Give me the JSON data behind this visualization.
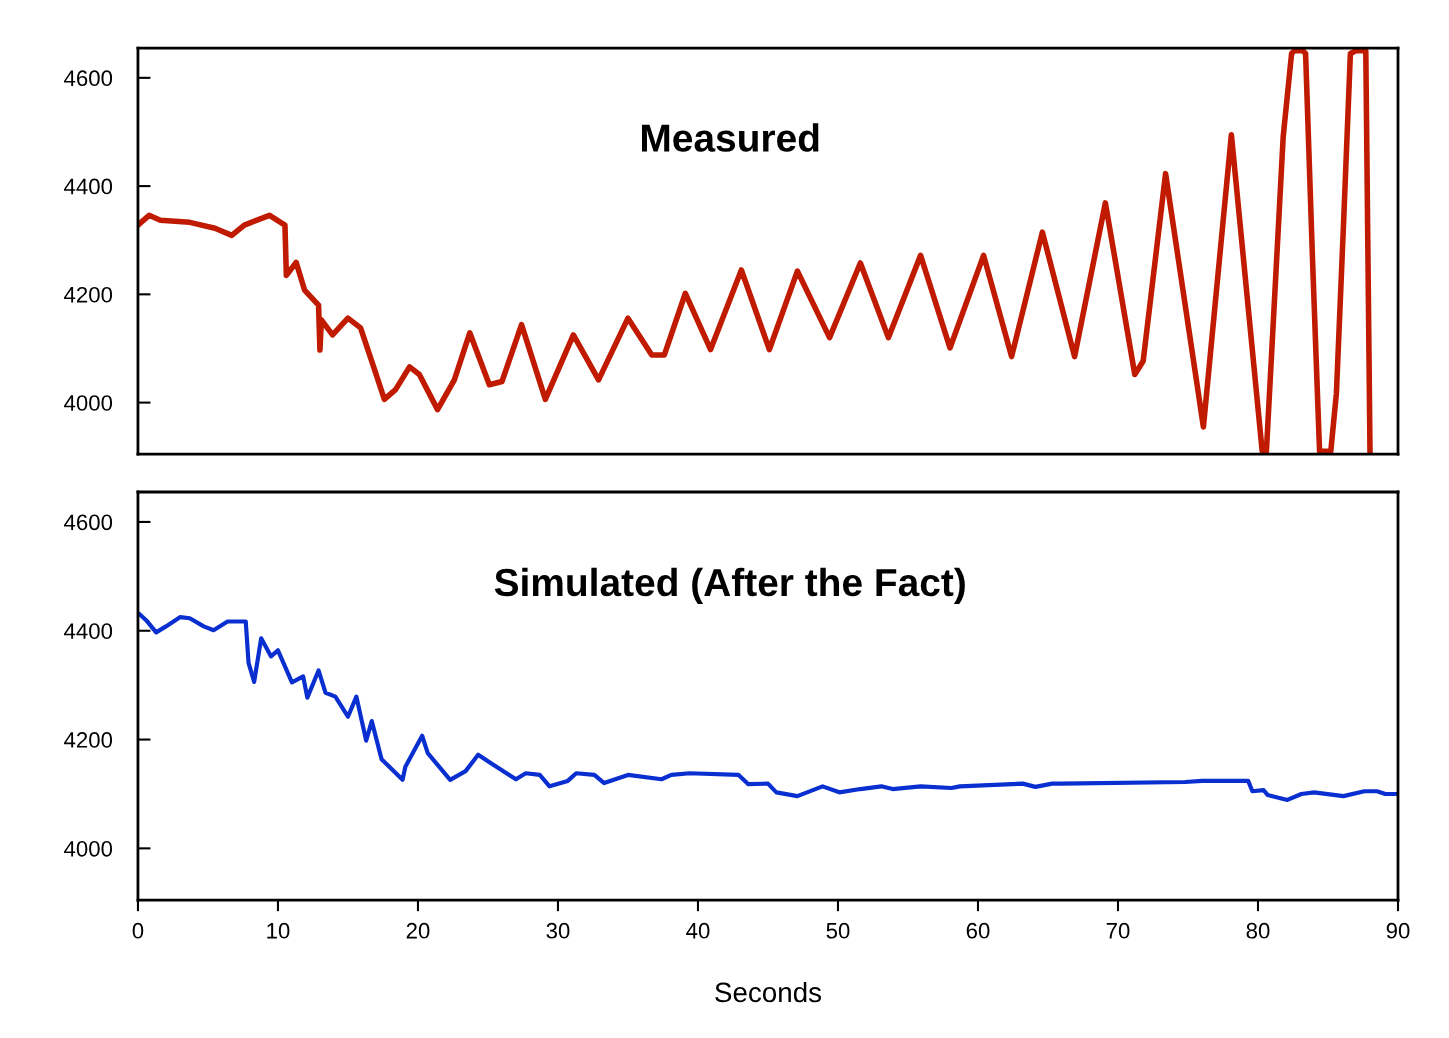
{
  "chart_data": [
    {
      "type": "line",
      "title": "Measured",
      "xlim": [
        0,
        90
      ],
      "ylim": [
        3905,
        4655
      ],
      "yticks": [
        4000,
        4200,
        4400,
        4600
      ],
      "tick_labels": "y",
      "grid": false,
      "legend": false,
      "marker": "none",
      "line_style": "solid",
      "series": [
        {
          "color": "#c01a00",
          "x": [
            0,
            0.8,
            1.6,
            3.7,
            5.5,
            6.7,
            7.6,
            9.4,
            10.5,
            10.6,
            11.3,
            11.9,
            12.9,
            13.0,
            13.1,
            13.9,
            15.0,
            15.9,
            16.9,
            17.6,
            18.4,
            19.4,
            20.1,
            21.4,
            22.6,
            23.7,
            25.1,
            26.0,
            27.4,
            29.1,
            31.1,
            32.9,
            35.0,
            36.7,
            37.6,
            39.1,
            40.9,
            43.1,
            45.1,
            47.1,
            49.4,
            51.6,
            53.6,
            55.9,
            58.0,
            60.4,
            62.4,
            64.6,
            66.9,
            69.1,
            71.2,
            71.8,
            73.4,
            76.1,
            78.1,
            80.3,
            80.6,
            81.8,
            82.4,
            82.6,
            83.2,
            83.4,
            83.9,
            84.3,
            84.4,
            85.2,
            85.6,
            86.1,
            86.6,
            87.0,
            87.7,
            88.0
          ],
          "values": [
            4328,
            4346,
            4337,
            4333,
            4322,
            4309,
            4328,
            4346,
            4328,
            4235,
            4259,
            4208,
            4180,
            4097,
            4153,
            4125,
            4156,
            4138,
            4061,
            4006,
            4024,
            4066,
            4052,
            3987,
            4042,
            4129,
            4033,
            4039,
            4144,
            4006,
            4125,
            4042,
            4156,
            4088,
            4088,
            4202,
            4098,
            4245,
            4098,
            4243,
            4120,
            4258,
            4120,
            4272,
            4101,
            4272,
            4085,
            4315,
            4085,
            4369,
            4052,
            4077,
            4423,
            3955,
            4495,
            3910,
            3910,
            4491,
            4645,
            4650,
            4650,
            4645,
            4261,
            3978,
            3910,
            3910,
            4017,
            4324,
            4645,
            4650,
            4650,
            3910
          ]
        }
      ]
    },
    {
      "type": "line",
      "title": "Simulated (After the Fact)",
      "xlabel": "Seconds",
      "xlim": [
        0,
        90
      ],
      "xticks": [
        0,
        10,
        20,
        30,
        40,
        50,
        60,
        70,
        80,
        90
      ],
      "ylim": [
        3905,
        4655
      ],
      "yticks": [
        4000,
        4200,
        4400,
        4600
      ],
      "grid": false,
      "legend": false,
      "marker": "none",
      "line_style": "solid",
      "series": [
        {
          "color": "#0a2fd0",
          "x": [
            0.14,
            0.6,
            1.3,
            2.0,
            3.0,
            3.7,
            4.7,
            5.4,
            6.4,
            7.7,
            7.9,
            8.3,
            8.8,
            9.5,
            10.0,
            11.0,
            11.8,
            12.1,
            12.9,
            13.4,
            14.1,
            15.0,
            15.6,
            16.3,
            16.7,
            17.4,
            18.9,
            19.1,
            20.3,
            20.7,
            22.3,
            23.4,
            24.3,
            25.3,
            27.0,
            27.7,
            28.7,
            29.4,
            30.7,
            31.3,
            32.6,
            33.3,
            35.0,
            37.4,
            38.1,
            39.4,
            42.9,
            43.6,
            45.0,
            45.6,
            47.1,
            48.9,
            50.1,
            51.6,
            53.1,
            53.9,
            55.9,
            58.1,
            58.7,
            63.2,
            64.1,
            65.3,
            65.9,
            74.8,
            76.0,
            79.3,
            79.6,
            80.4,
            80.7,
            82.1,
            83.1,
            84.0,
            86.1,
            87.6,
            88.5,
            89.1,
            90.0
          ],
          "values": [
            4430,
            4419,
            4397,
            4408,
            4425,
            4423,
            4408,
            4401,
            4417,
            4417,
            4341,
            4306,
            4386,
            4353,
            4364,
            4305,
            4316,
            4277,
            4327,
            4286,
            4279,
            4242,
            4279,
            4198,
            4234,
            4164,
            4126,
            4150,
            4207,
            4175,
            4126,
            4142,
            4172,
            4155,
            4127,
            4138,
            4135,
            4114,
            4124,
            4138,
            4135,
            4120,
            4135,
            4127,
            4135,
            4138,
            4135,
            4118,
            4119,
            4103,
            4096,
            4114,
            4103,
            4109,
            4114,
            4109,
            4114,
            4111,
            4114,
            4119,
            4113,
            4119,
            4119,
            4122,
            4124,
            4124,
            4105,
            4107,
            4098,
            4089,
            4100,
            4103,
            4096,
            4105,
            4105,
            4100,
            4100
          ]
        }
      ]
    }
  ]
}
